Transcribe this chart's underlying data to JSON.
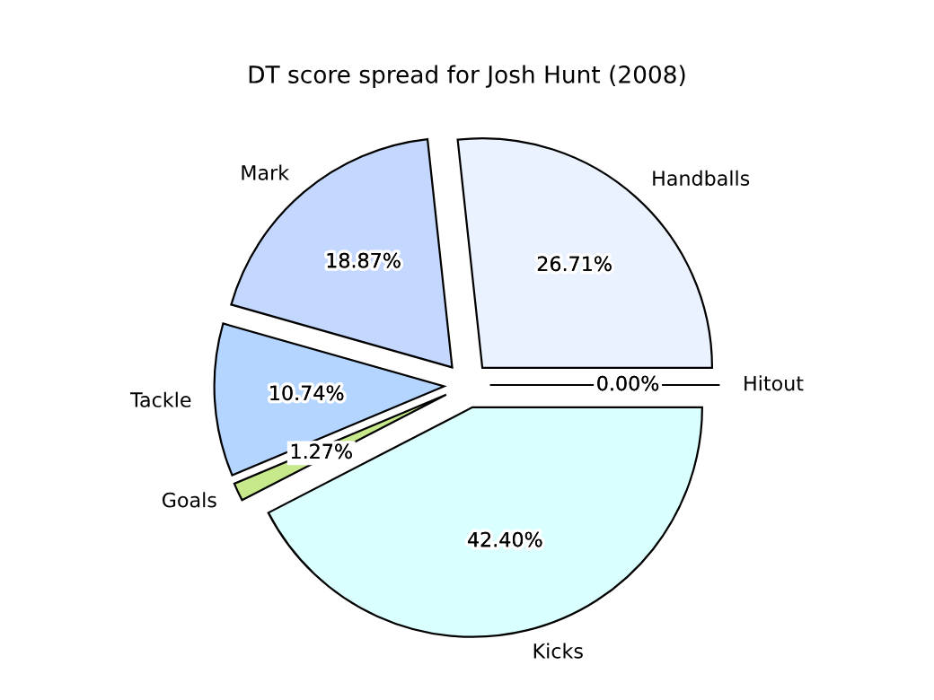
{
  "chart_data": {
    "type": "pie",
    "title": "DT score spread for Josh Hunt (2008)",
    "categories": [
      "Handballs",
      "Mark",
      "Tackle",
      "Goals",
      "Kicks",
      "Hitout"
    ],
    "values": [
      26.71,
      18.87,
      10.74,
      1.27,
      42.4,
      0.0
    ],
    "value_labels": [
      "26.71%",
      "18.87%",
      "10.74%",
      "1.27%",
      "42.40%",
      "0.00%"
    ],
    "colors": [
      "#ebf2ff",
      "#c4d8ff",
      "#b3d5ff",
      "#c8e88c",
      "#d9ffff",
      "#e8e8ff"
    ],
    "legend": false
  }
}
